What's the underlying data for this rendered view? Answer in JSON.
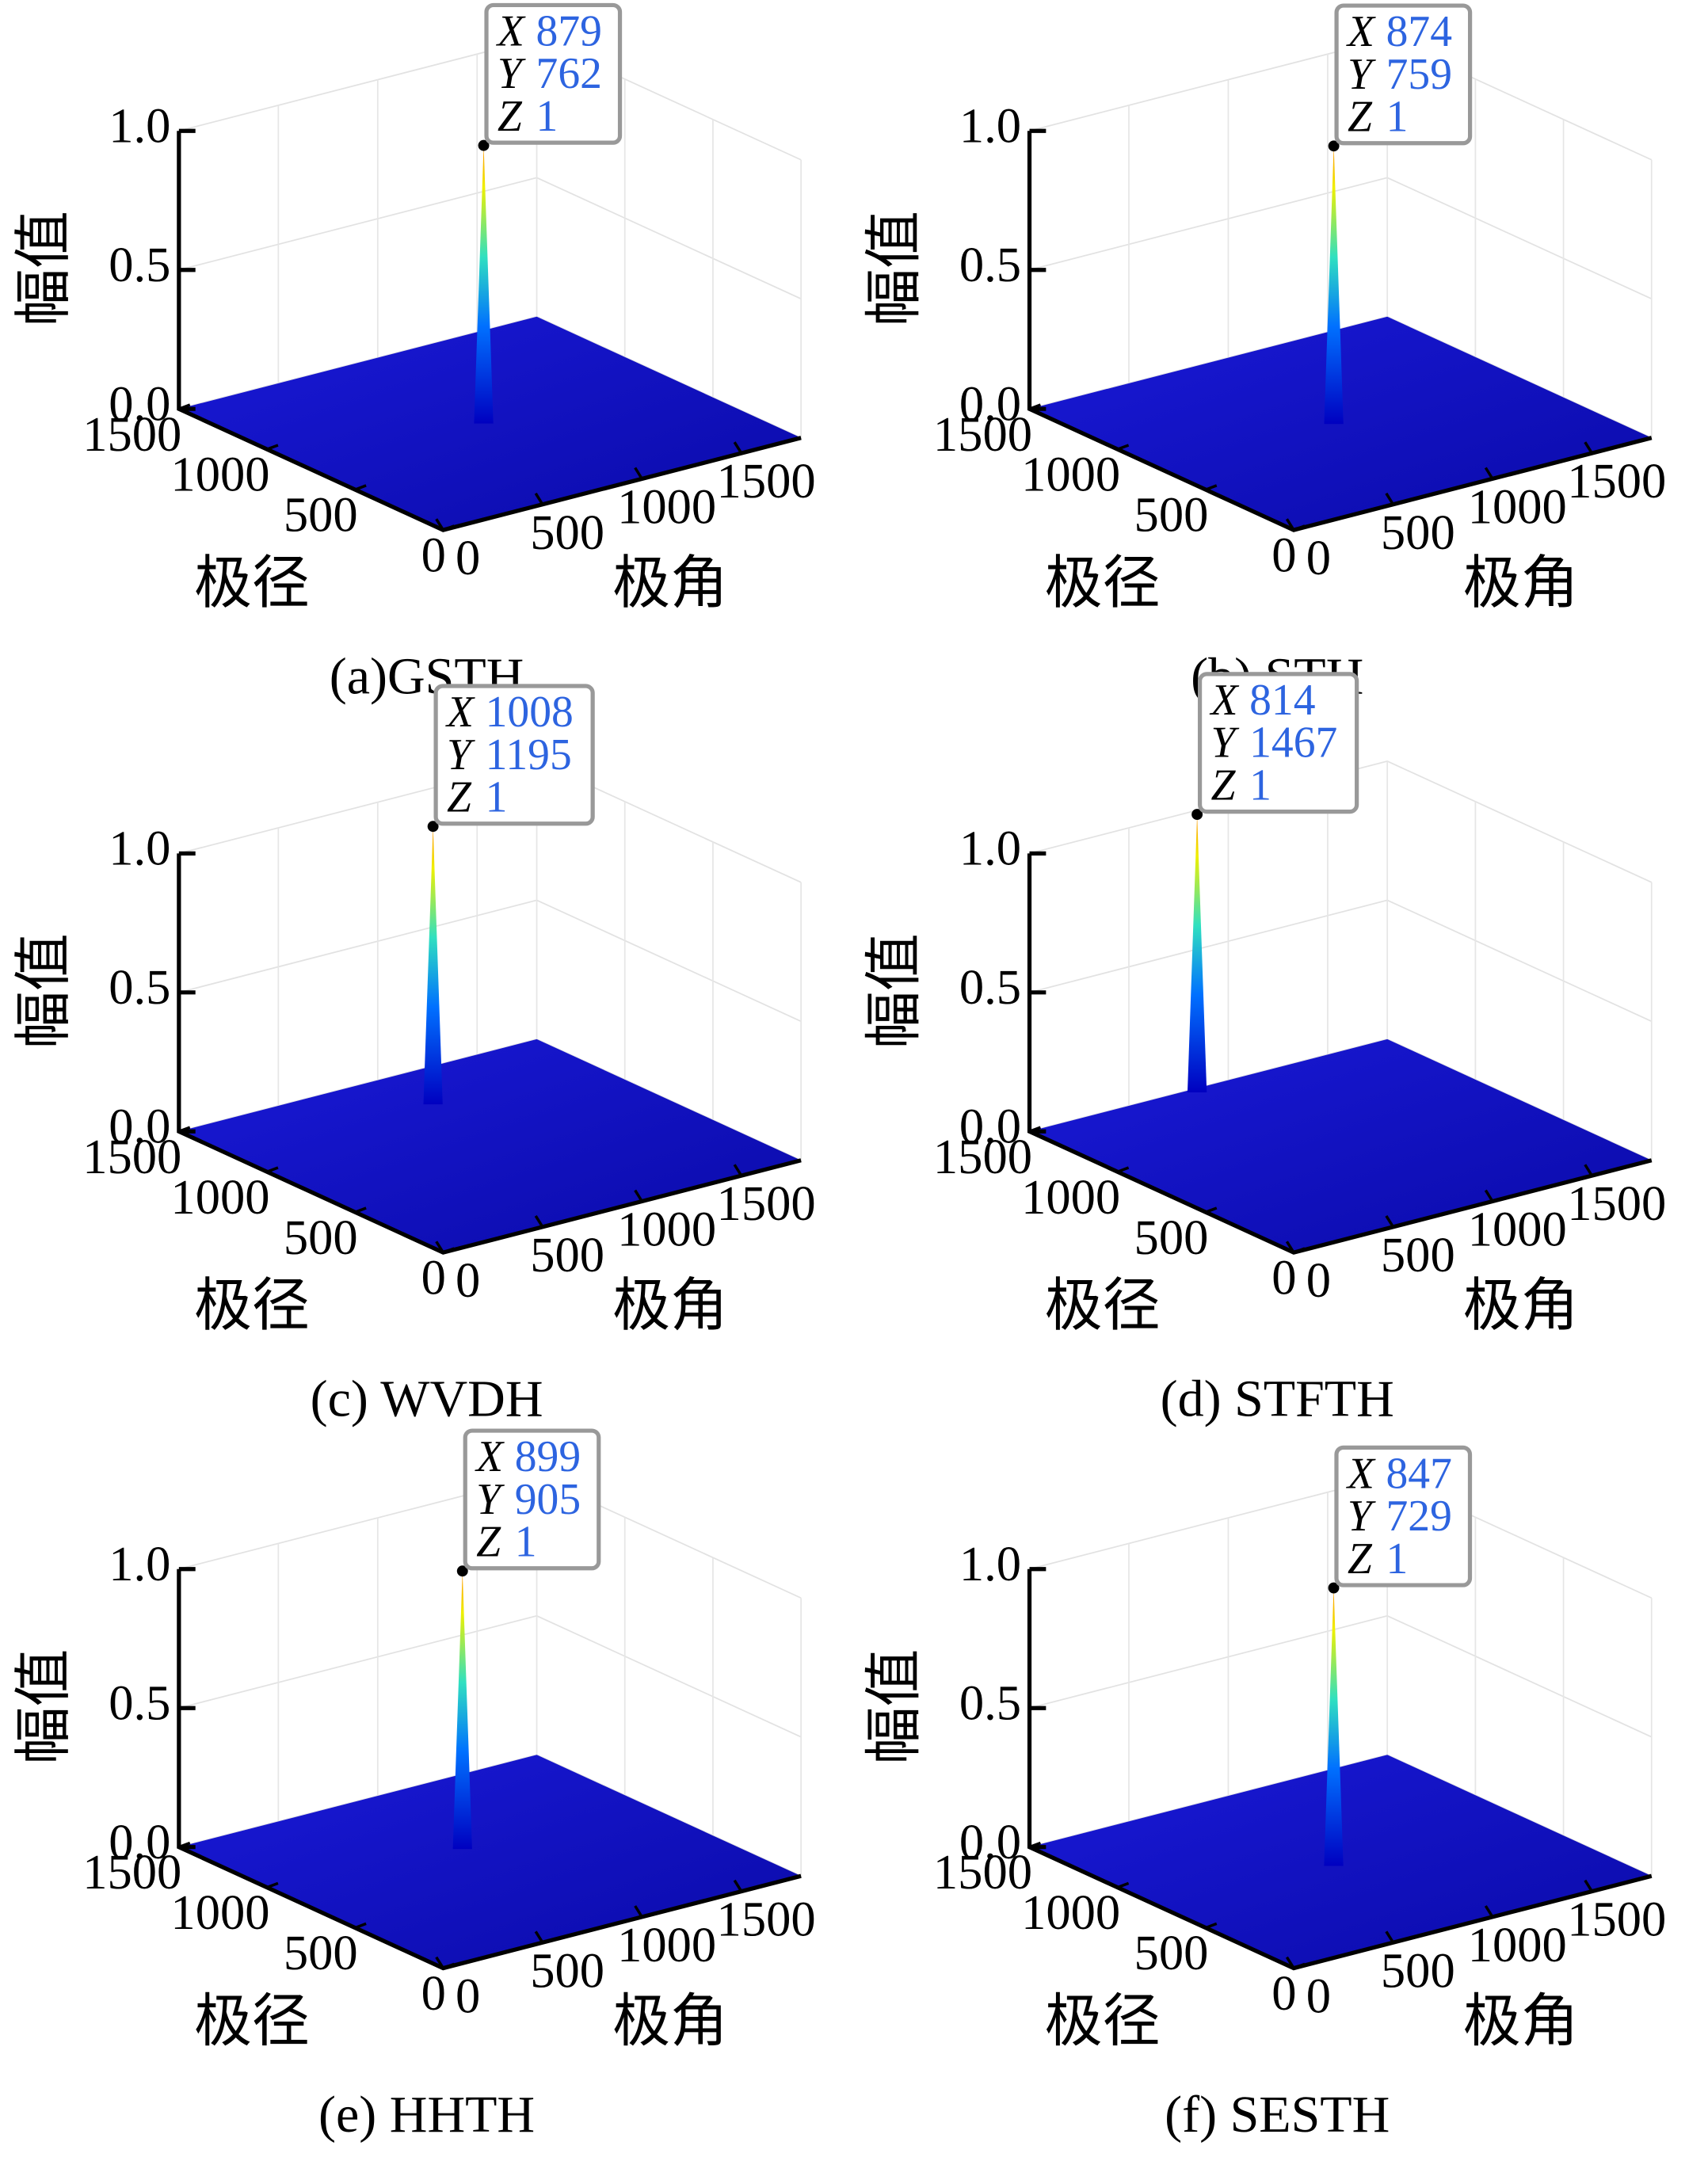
{
  "chart_data": [
    {
      "type": "surface",
      "caption": "(a)GSTH",
      "xlabel": "极角",
      "ylabel": "极径",
      "zlabel": "幅值",
      "colormap": "jet",
      "grid": true,
      "xlim": [
        0,
        1800
      ],
      "ylim": [
        0,
        1500
      ],
      "zlim": [
        0,
        1
      ],
      "xticks": [
        0,
        500,
        1000,
        1500
      ],
      "yticks": [
        0,
        500,
        1000,
        1500
      ],
      "zticks": [
        {
          "value": 0,
          "label": "0.0"
        },
        {
          "value": 0.5,
          "label": "0.5"
        },
        {
          "value": 1,
          "label": "1.0"
        }
      ],
      "datatip": {
        "labels": [
          "X",
          "Y",
          "Z"
        ],
        "x": 879,
        "y": 762,
        "z": 1
      }
    },
    {
      "type": "surface",
      "caption": "(b) STH",
      "xlabel": "极角",
      "ylabel": "极径",
      "zlabel": "幅值",
      "colormap": "jet",
      "grid": true,
      "xlim": [
        0,
        1800
      ],
      "ylim": [
        0,
        1500
      ],
      "zlim": [
        0,
        1
      ],
      "xticks": [
        0,
        500,
        1000,
        1500
      ],
      "yticks": [
        0,
        500,
        1000,
        1500
      ],
      "zticks": [
        {
          "value": 0,
          "label": "0.0"
        },
        {
          "value": 0.5,
          "label": "0.5"
        },
        {
          "value": 1,
          "label": "1.0"
        }
      ],
      "datatip": {
        "labels": [
          "X",
          "Y",
          "Z"
        ],
        "x": 874,
        "y": 759,
        "z": 1
      }
    },
    {
      "type": "surface",
      "caption": "(c) WVDH",
      "xlabel": "极角",
      "ylabel": "极径",
      "zlabel": "幅值",
      "colormap": "jet",
      "grid": true,
      "xlim": [
        0,
        1800
      ],
      "ylim": [
        0,
        1500
      ],
      "zlim": [
        0,
        1
      ],
      "xticks": [
        0,
        500,
        1000,
        1500
      ],
      "yticks": [
        0,
        500,
        1000,
        1500
      ],
      "zticks": [
        {
          "value": 0,
          "label": "0.0"
        },
        {
          "value": 0.5,
          "label": "0.5"
        },
        {
          "value": 1,
          "label": "1.0"
        }
      ],
      "datatip": {
        "labels": [
          "X",
          "Y",
          "Z"
        ],
        "x": 1008,
        "y": 1195,
        "z": 1
      }
    },
    {
      "type": "surface",
      "caption": "(d) STFTH",
      "xlabel": "极角",
      "ylabel": "极径",
      "zlabel": "幅值",
      "colormap": "jet",
      "grid": true,
      "xlim": [
        0,
        1800
      ],
      "ylim": [
        0,
        1500
      ],
      "zlim": [
        0,
        1
      ],
      "xticks": [
        0,
        500,
        1000,
        1500
      ],
      "yticks": [
        0,
        500,
        1000,
        1500
      ],
      "zticks": [
        {
          "value": 0,
          "label": "0.0"
        },
        {
          "value": 0.5,
          "label": "0.5"
        },
        {
          "value": 1,
          "label": "1.0"
        }
      ],
      "datatip": {
        "labels": [
          "X",
          "Y",
          "Z"
        ],
        "x": 814,
        "y": 1467,
        "z": 1
      }
    },
    {
      "type": "surface",
      "caption": "(e) HHTH",
      "xlabel": "极角",
      "ylabel": "极径",
      "zlabel": "幅值",
      "colormap": "jet",
      "grid": true,
      "xlim": [
        0,
        1800
      ],
      "ylim": [
        0,
        1500
      ],
      "zlim": [
        0,
        1
      ],
      "xticks": [
        0,
        500,
        1000,
        1500
      ],
      "yticks": [
        0,
        500,
        1000,
        1500
      ],
      "zticks": [
        {
          "value": 0,
          "label": "0.0"
        },
        {
          "value": 0.5,
          "label": "0.5"
        },
        {
          "value": 1,
          "label": "1.0"
        }
      ],
      "datatip": {
        "labels": [
          "X",
          "Y",
          "Z"
        ],
        "x": 899,
        "y": 905,
        "z": 1
      }
    },
    {
      "type": "surface",
      "caption": "(f) SESTH",
      "xlabel": "极角",
      "ylabel": "极径",
      "zlabel": "幅值",
      "colormap": "jet",
      "grid": true,
      "xlim": [
        0,
        1800
      ],
      "ylim": [
        0,
        1500
      ],
      "zlim": [
        0,
        1
      ],
      "xticks": [
        0,
        500,
        1000,
        1500
      ],
      "yticks": [
        0,
        500,
        1000,
        1500
      ],
      "zticks": [
        {
          "value": 0,
          "label": "0.0"
        },
        {
          "value": 0.5,
          "label": "0.5"
        },
        {
          "value": 1,
          "label": "1.0"
        }
      ],
      "datatip": {
        "labels": [
          "X",
          "Y",
          "Z"
        ],
        "x": 847,
        "y": 729,
        "z": 1
      }
    }
  ]
}
